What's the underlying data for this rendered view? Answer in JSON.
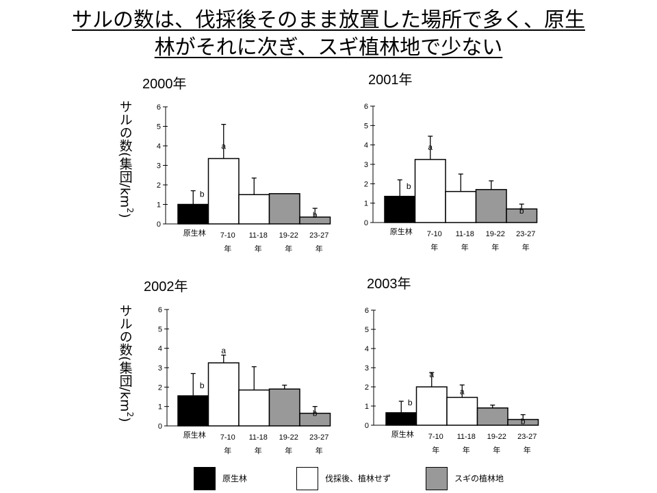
{
  "title": {
    "line1": "サルの数は、伐採後そのまま放置した場所で多く、原生",
    "line2": "林がそれに次ぎ、スギ植林地で少ない"
  },
  "ylabel": {
    "main": "サルの数(集団/km",
    "sup": "2",
    "close": ")"
  },
  "colors": {
    "black": "#000000",
    "white": "#ffffff",
    "gray": "#999999"
  },
  "legend": [
    {
      "label": "原生林",
      "color": "#000000"
    },
    {
      "label": "伐採後、植林せず",
      "color": "#ffffff"
    },
    {
      "label": "スギの植林地",
      "color": "#999999"
    }
  ],
  "chart_data": [
    {
      "type": "bar",
      "title": "2000年",
      "categories": [
        "原生林",
        "7-10\n年",
        "11-18\n年",
        "19-22\n年",
        "23-27\n年"
      ],
      "values": [
        1.0,
        3.35,
        1.5,
        1.55,
        0.35
      ],
      "error_plus": [
        0.7,
        1.75,
        0.85,
        0,
        0.45
      ],
      "letters": [
        "b",
        "a",
        "",
        "",
        "b"
      ],
      "bar_colors": [
        "#000000",
        "#ffffff",
        "#ffffff",
        "#999999",
        "#999999"
      ],
      "ylim": [
        0,
        6
      ],
      "yticks": [
        "0",
        "1",
        "2",
        "3",
        "4",
        "5",
        "6"
      ],
      "grid": false
    },
    {
      "type": "bar",
      "title": "2001年",
      "categories": [
        "原生林",
        "7-10\n年",
        "11-18\n年",
        "19-22\n年",
        "23-27\n年"
      ],
      "values": [
        1.35,
        3.25,
        1.6,
        1.7,
        0.7
      ],
      "error_plus": [
        0.85,
        1.2,
        0.9,
        0.45,
        0.25
      ],
      "letters": [
        "b",
        "a",
        "",
        "",
        "b"
      ],
      "bar_colors": [
        "#000000",
        "#ffffff",
        "#ffffff",
        "#999999",
        "#999999"
      ],
      "ylim": [
        0,
        6
      ],
      "yticks": [
        "0",
        "1",
        "2",
        "3",
        "4",
        "5",
        "6"
      ],
      "grid": false
    },
    {
      "type": "bar",
      "title": "2002年",
      "categories": [
        "原生林",
        "7-10\n年",
        "11-18\n年",
        "19-22\n年",
        "23-27\n年"
      ],
      "values": [
        1.55,
        3.25,
        1.85,
        1.9,
        0.65
      ],
      "error_plus": [
        1.15,
        0.4,
        1.2,
        0.2,
        0.35
      ],
      "letters": [
        "b",
        "a",
        "",
        "",
        "b"
      ],
      "bar_colors": [
        "#000000",
        "#ffffff",
        "#ffffff",
        "#999999",
        "#999999"
      ],
      "ylim": [
        0,
        6
      ],
      "yticks": [
        "0",
        "1",
        "2",
        "3",
        "4",
        "5",
        "6"
      ],
      "grid": false
    },
    {
      "type": "bar",
      "title": "2003年",
      "categories": [
        "原生林",
        "7-10\n年",
        "11-18\n年",
        "19-22\n年",
        "23-27\n年"
      ],
      "values": [
        0.65,
        2.0,
        1.45,
        0.9,
        0.3
      ],
      "error_plus": [
        0.6,
        0.75,
        0.65,
        0.15,
        0.25
      ],
      "letters": [
        "b",
        "a",
        "a",
        "",
        "b"
      ],
      "bar_colors": [
        "#000000",
        "#ffffff",
        "#ffffff",
        "#999999",
        "#999999"
      ],
      "ylim": [
        0,
        6
      ],
      "yticks": [
        "0",
        "1",
        "2",
        "3",
        "4",
        "5",
        "6"
      ],
      "grid": false
    }
  ]
}
